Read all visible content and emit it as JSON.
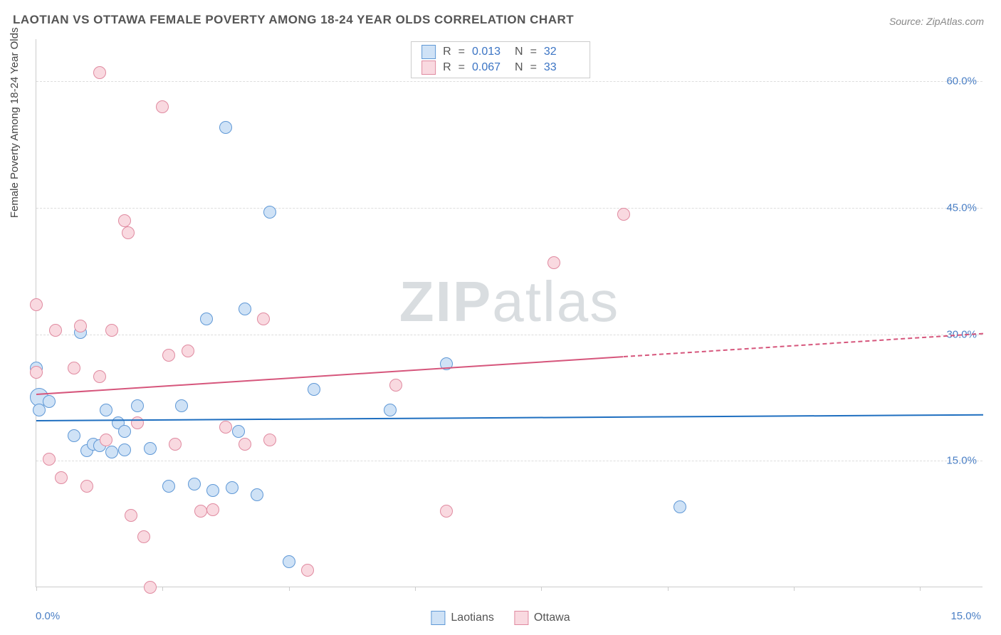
{
  "title": "LAOTIAN VS OTTAWA FEMALE POVERTY AMONG 18-24 YEAR OLDS CORRELATION CHART",
  "source": "Source: ZipAtlas.com",
  "watermark": {
    "bold": "ZIP",
    "light": "atlas"
  },
  "y_axis": {
    "title": "Female Poverty Among 18-24 Year Olds",
    "title_color": "#444444",
    "ticks": [
      15.0,
      30.0,
      45.0,
      60.0
    ],
    "tick_labels": [
      "15.0%",
      "30.0%",
      "45.0%",
      "60.0%"
    ],
    "min": 0.0,
    "max": 65.0,
    "label_color": "#4a7fc5"
  },
  "x_axis": {
    "min": 0.0,
    "max": 15.0,
    "ticks": [
      0.0,
      2.0,
      4.0,
      6.0,
      8.0,
      10.0,
      12.0,
      14.0
    ],
    "left_label": "0.0%",
    "right_label": "15.0%",
    "label_color": "#4a7fc5"
  },
  "grid_color": "#dddddd",
  "axis_color": "#cccccc",
  "background_color": "#ffffff",
  "series": [
    {
      "name": "Laotians",
      "fill": "#cfe2f6",
      "stroke": "#5f98d6",
      "marker_radius": 9,
      "trend": {
        "y_at_xmin": 19.8,
        "y_at_xmax": 20.5,
        "color": "#1f6fc0",
        "style": "solid"
      },
      "stats": {
        "R": "0.013",
        "N": "32"
      },
      "points": [
        {
          "x": 0.05,
          "y": 22.5,
          "r": 13
        },
        {
          "x": 0.05,
          "y": 21.0
        },
        {
          "x": 0.0,
          "y": 26.0
        },
        {
          "x": 0.2,
          "y": 22.0
        },
        {
          "x": 0.6,
          "y": 18.0
        },
        {
          "x": 0.7,
          "y": 30.2
        },
        {
          "x": 0.8,
          "y": 16.2
        },
        {
          "x": 0.9,
          "y": 17.0
        },
        {
          "x": 1.0,
          "y": 16.8
        },
        {
          "x": 1.1,
          "y": 21.0
        },
        {
          "x": 1.2,
          "y": 16.0
        },
        {
          "x": 1.3,
          "y": 19.5
        },
        {
          "x": 1.4,
          "y": 18.5
        },
        {
          "x": 1.4,
          "y": 16.3
        },
        {
          "x": 1.6,
          "y": 21.5
        },
        {
          "x": 1.8,
          "y": 16.5
        },
        {
          "x": 2.1,
          "y": 12.0
        },
        {
          "x": 2.3,
          "y": 21.5
        },
        {
          "x": 2.5,
          "y": 12.2
        },
        {
          "x": 2.7,
          "y": 31.8
        },
        {
          "x": 2.8,
          "y": 11.5
        },
        {
          "x": 3.0,
          "y": 54.5
        },
        {
          "x": 3.1,
          "y": 11.8
        },
        {
          "x": 3.2,
          "y": 18.5
        },
        {
          "x": 3.3,
          "y": 33.0
        },
        {
          "x": 3.5,
          "y": 11.0
        },
        {
          "x": 3.7,
          "y": 44.5
        },
        {
          "x": 4.0,
          "y": 3.0
        },
        {
          "x": 4.4,
          "y": 23.5
        },
        {
          "x": 5.6,
          "y": 21.0
        },
        {
          "x": 6.5,
          "y": 26.5
        },
        {
          "x": 10.2,
          "y": 9.5
        }
      ]
    },
    {
      "name": "Ottawa",
      "fill": "#f9d9e0",
      "stroke": "#e08aa0",
      "marker_radius": 9,
      "trend": {
        "y_at_xmin": 23.0,
        "y_at_xmax": 30.2,
        "color": "#d6567c",
        "style": "solid",
        "dash_extension_from_x": 9.3
      },
      "stats": {
        "R": "0.067",
        "N": "33"
      },
      "points": [
        {
          "x": 0.0,
          "y": 33.5
        },
        {
          "x": 0.0,
          "y": 25.5
        },
        {
          "x": 0.2,
          "y": 15.2
        },
        {
          "x": 0.3,
          "y": 30.5
        },
        {
          "x": 0.4,
          "y": 13.0
        },
        {
          "x": 0.6,
          "y": 26.0
        },
        {
          "x": 0.7,
          "y": 31.0
        },
        {
          "x": 0.8,
          "y": 12.0
        },
        {
          "x": 1.0,
          "y": 61.0
        },
        {
          "x": 1.0,
          "y": 25.0
        },
        {
          "x": 1.1,
          "y": 17.5
        },
        {
          "x": 1.2,
          "y": 30.5
        },
        {
          "x": 1.4,
          "y": 43.5
        },
        {
          "x": 1.45,
          "y": 42.0
        },
        {
          "x": 1.5,
          "y": 8.5
        },
        {
          "x": 1.6,
          "y": 19.5
        },
        {
          "x": 1.7,
          "y": 6.0
        },
        {
          "x": 1.8,
          "y": 0.0
        },
        {
          "x": 2.0,
          "y": 57.0
        },
        {
          "x": 2.1,
          "y": 27.5
        },
        {
          "x": 2.2,
          "y": 17.0
        },
        {
          "x": 2.4,
          "y": 28.0
        },
        {
          "x": 2.6,
          "y": 9.0
        },
        {
          "x": 2.8,
          "y": 9.2
        },
        {
          "x": 3.0,
          "y": 19.0
        },
        {
          "x": 3.3,
          "y": 17.0
        },
        {
          "x": 3.6,
          "y": 31.8
        },
        {
          "x": 3.7,
          "y": 17.5
        },
        {
          "x": 4.3,
          "y": 2.0
        },
        {
          "x": 5.7,
          "y": 24.0
        },
        {
          "x": 6.5,
          "y": 9.0
        },
        {
          "x": 8.2,
          "y": 38.5
        },
        {
          "x": 9.3,
          "y": 44.2
        }
      ]
    }
  ],
  "stats_legend": {
    "R_label": "R",
    "N_label": "N",
    "eq": "=",
    "value_color": "#3b74c4",
    "key_color": "#555555"
  },
  "series_legend": {
    "items": [
      "Laotians",
      "Ottawa"
    ]
  }
}
